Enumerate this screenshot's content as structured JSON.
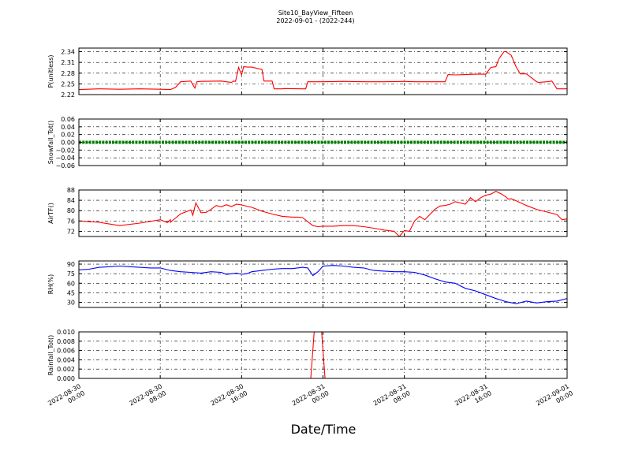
{
  "figure": {
    "title_line1": "Site10_BayView_Fifteen",
    "title_line2": "2022-09-01 - (2022-244)",
    "xlabel": "Date/Time"
  },
  "x_ticks": [
    {
      "line1": "2022-08-30",
      "line2": "00:00",
      "hours": 0
    },
    {
      "line1": "2022-08-30",
      "line2": "08:00",
      "hours": 8
    },
    {
      "line1": "2022-08-30",
      "line2": "16:00",
      "hours": 16
    },
    {
      "line1": "2022-08-31",
      "line2": "00:00",
      "hours": 24
    },
    {
      "line1": "2022-08-31",
      "line2": "08:00",
      "hours": 32
    },
    {
      "line1": "2022-08-31",
      "line2": "16:00",
      "hours": 40
    },
    {
      "line1": "2022-09-01",
      "line2": "00:00",
      "hours": 48
    }
  ],
  "chart_data": [
    {
      "type": "line",
      "ylabel": "P(unitless)",
      "ylim": [
        2.22,
        2.35
      ],
      "yticks": [
        "2.22",
        "2.25",
        "2.28",
        "2.31",
        "2.34"
      ],
      "color": "#ff0000",
      "grid": true,
      "series": [
        {
          "x_hours": [
            0,
            2,
            4,
            6,
            8,
            9,
            9.5,
            10,
            11,
            11.4,
            11.6,
            12,
            14,
            15,
            15.2,
            15.4,
            15.7,
            16,
            16.2,
            16.6,
            17,
            18,
            18.2,
            19,
            19.2,
            20,
            20.2,
            22,
            22.3,
            22.5,
            23,
            23.5,
            24,
            26,
            28,
            30,
            32,
            33,
            34,
            35,
            36,
            36.3,
            37,
            38,
            39,
            40,
            40.5,
            41,
            41.3,
            41.8,
            42,
            42.5,
            43,
            43.4,
            43.8,
            44,
            45,
            45.2,
            46,
            46.5,
            47,
            47.2,
            48
          ],
          "y": [
            2.234,
            2.236,
            2.235,
            2.236,
            2.235,
            2.234,
            2.24,
            2.256,
            2.258,
            2.238,
            2.256,
            2.257,
            2.258,
            2.254,
            2.258,
            2.257,
            2.296,
            2.275,
            2.298,
            2.297,
            2.297,
            2.29,
            2.258,
            2.258,
            2.236,
            2.236,
            2.237,
            2.236,
            2.236,
            2.256,
            2.256,
            2.256,
            2.256,
            2.257,
            2.256,
            2.256,
            2.257,
            2.256,
            2.256,
            2.256,
            2.256,
            2.276,
            2.275,
            2.276,
            2.277,
            2.277,
            2.296,
            2.298,
            2.32,
            2.34,
            2.34,
            2.33,
            2.297,
            2.278,
            2.278,
            2.278,
            2.256,
            2.254,
            2.256,
            2.258,
            2.236,
            2.236,
            2.236
          ]
        }
      ]
    },
    {
      "type": "line",
      "ylabel": "Snowfall_Tot()",
      "ylim": [
        -0.06,
        0.06
      ],
      "yticks": [
        "−0.06",
        "−0.04",
        "−0.02",
        "0.00",
        "0.02",
        "0.04",
        "0.06"
      ],
      "color": "#008000",
      "grid": true,
      "series": [
        {
          "x_hours": [
            0,
            48
          ],
          "y": [
            0,
            0
          ]
        }
      ]
    },
    {
      "type": "line",
      "ylabel": "AirTF()",
      "ylim": [
        70,
        88
      ],
      "yticks": [
        "72",
        "76",
        "80",
        "84",
        "88"
      ],
      "color": "#ff0000",
      "grid": true,
      "series": [
        {
          "x_hours": [
            0,
            2,
            4,
            6,
            8,
            8.7,
            9,
            9,
            10,
            10.5,
            11,
            11.2,
            11.5,
            12,
            12.5,
            13,
            13.5,
            14,
            14.5,
            15,
            15.5,
            16,
            17,
            18,
            19,
            20,
            21,
            21.5,
            22,
            23,
            23.5,
            24,
            25,
            26,
            27,
            28,
            29,
            30,
            31,
            31.5,
            32,
            32.5,
            33,
            33.5,
            34,
            35,
            35.5,
            36,
            36.5,
            37,
            38,
            38.5,
            39,
            39.5,
            40,
            40.5,
            41,
            41.5,
            42,
            42.2,
            42.5,
            43,
            44,
            45,
            46,
            47,
            47.5,
            48
          ],
          "y": [
            76,
            75.5,
            74.2,
            75.2,
            76.5,
            75.4,
            76.5,
            75.5,
            78.8,
            79.5,
            80.3,
            78.2,
            83,
            79.2,
            79.3,
            80.5,
            82,
            81.5,
            82.3,
            81.6,
            82.5,
            82.2,
            81.3,
            79.8,
            78.7,
            77.8,
            77.5,
            77.5,
            77.3,
            74.2,
            73.8,
            74,
            74,
            74.2,
            74.2,
            73.8,
            73.2,
            72.5,
            72,
            70,
            72.3,
            72,
            76,
            77.8,
            76.5,
            80.5,
            81.8,
            82,
            82.5,
            83.5,
            82.5,
            85,
            83.5,
            85,
            86,
            86.4,
            87.5,
            86.5,
            85.3,
            84.5,
            84.6,
            83.8,
            82,
            80.5,
            79.5,
            78.5,
            76.5,
            76.8
          ]
        }
      ]
    },
    {
      "type": "line",
      "ylabel": "RH(%)",
      "ylim": [
        22,
        95
      ],
      "yticks": [
        "30",
        "45",
        "60",
        "75",
        "90"
      ],
      "color": "#0000ff",
      "grid": true,
      "series": [
        {
          "x_hours": [
            0,
            1,
            2,
            3,
            4,
            5,
            6,
            7,
            8,
            9,
            10,
            11,
            12,
            13,
            14,
            14.5,
            15,
            15.5,
            16,
            16.5,
            17,
            18,
            19,
            20,
            21,
            22,
            22.5,
            23,
            23.5,
            24,
            25,
            26,
            27,
            28,
            29,
            30,
            31,
            32,
            33,
            34,
            35,
            36,
            37,
            38,
            39,
            40,
            41,
            42,
            43,
            44,
            45,
            46,
            47,
            48
          ],
          "y": [
            81,
            82,
            85,
            86,
            87,
            86,
            85,
            84,
            84,
            80,
            78,
            77,
            76,
            78,
            77,
            74,
            75,
            76,
            74,
            75,
            78,
            80,
            82,
            83,
            83,
            85,
            84,
            72,
            78,
            87,
            88,
            87,
            85,
            84,
            80,
            79,
            78,
            78,
            77,
            73,
            67,
            62,
            60,
            52,
            48,
            42,
            36,
            31,
            28,
            32,
            29,
            31,
            32,
            36
          ]
        }
      ]
    },
    {
      "type": "line",
      "ylabel": "Rainfall_Tot()",
      "ylim": [
        0,
        0.01
      ],
      "yticks": [
        "0.000",
        "0.002",
        "0.004",
        "0.006",
        "0.008",
        "0.010"
      ],
      "color": "#ff0000",
      "grid": true,
      "series": [
        {
          "x_hours": [
            0,
            22.8,
            23.2,
            23.8,
            24.2,
            48
          ],
          "y": [
            0,
            0,
            0.012,
            0.012,
            0,
            0
          ]
        }
      ]
    }
  ]
}
